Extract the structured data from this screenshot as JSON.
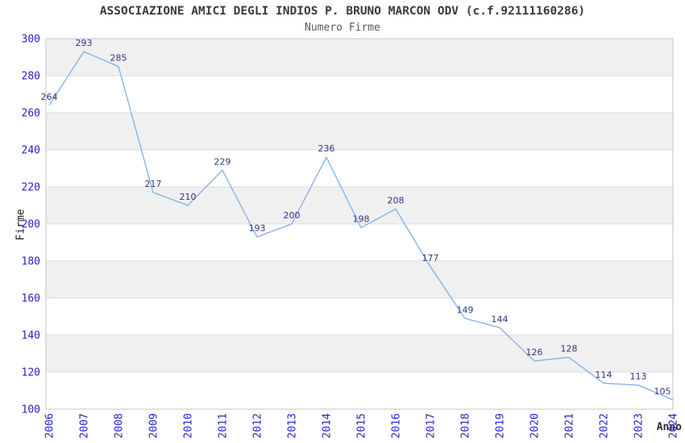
{
  "chart_data": {
    "type": "line",
    "title": "ASSOCIAZIONE AMICI DEGLI INDIOS P. BRUNO MARCON ODV (c.f.92111160286)",
    "subtitle": "Numero Firme",
    "xlabel": "Anno",
    "ylabel": "Firme",
    "x": [
      2006,
      2007,
      2008,
      2009,
      2010,
      2011,
      2012,
      2013,
      2014,
      2015,
      2016,
      2017,
      2018,
      2019,
      2020,
      2021,
      2022,
      2023,
      2024
    ],
    "values": [
      264,
      293,
      285,
      217,
      210,
      229,
      193,
      200,
      236,
      198,
      208,
      177,
      149,
      144,
      126,
      128,
      114,
      113,
      105
    ],
    "ylim": [
      100,
      300
    ],
    "ytick_step": 20,
    "xtick_rotation": -90,
    "grid": "horizontal gridlines with alternating shaded bands every 20 units",
    "legend": "none",
    "point_labels_visible": true,
    "colors": {
      "line": "#7db1e8",
      "data_label": "#333388",
      "tick_label": "#2424cd",
      "band_fill": "#f0f0f0",
      "gridline": "#dcdcdc",
      "plot_border": "#c3c3c3",
      "title_text": "#3a3a3a",
      "subtitle_text": "#5a5a5a",
      "axis_label_text": "#1a1a1a",
      "background": "#ffffff"
    }
  }
}
